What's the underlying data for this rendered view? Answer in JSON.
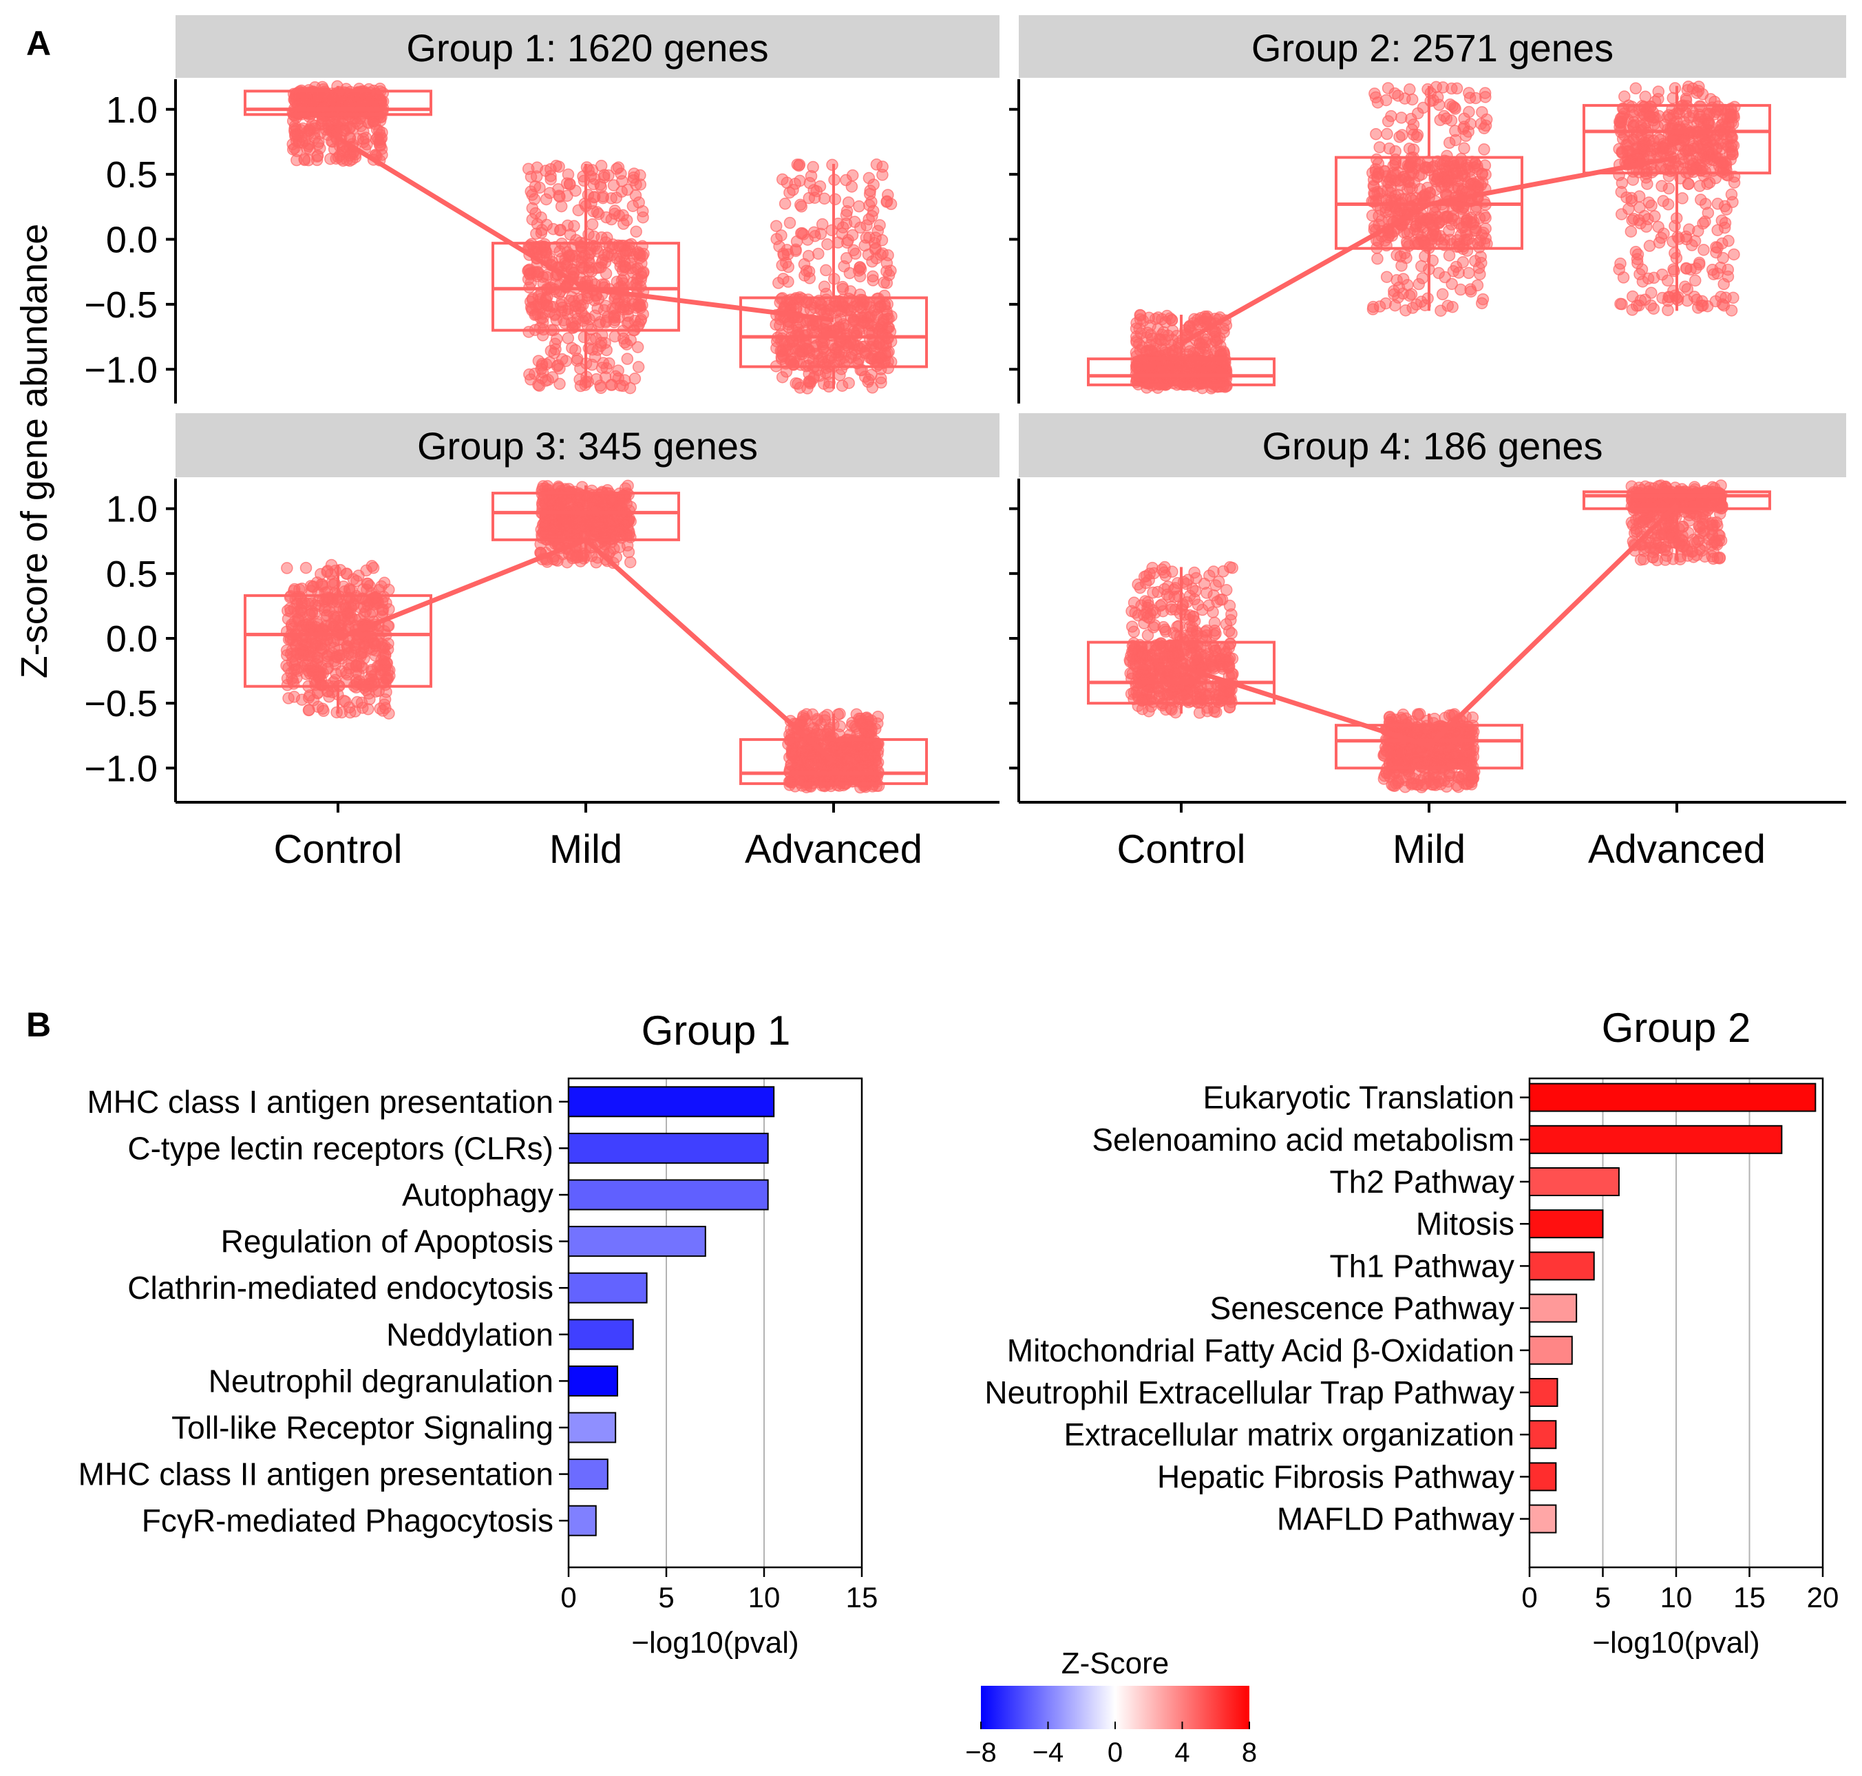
{
  "panel_labels": {
    "a": "A",
    "b": "B"
  },
  "colors": {
    "points": "#ff6464",
    "strip_bg": "#d3d3d3",
    "blue": "#0000ff",
    "white": "#ffffff",
    "red": "#ff0000"
  },
  "chart_data": [
    {
      "type": "box",
      "panel": "A",
      "ylabel": "Z-score of gene abundance",
      "yticks": [
        "1.0",
        "0.5",
        "0.0",
        "−0.5",
        "−1.0"
      ],
      "ytick_values": [
        1.0,
        0.5,
        0.0,
        -0.5,
        -1.0
      ],
      "ylim": [
        -1.25,
        1.25
      ],
      "categories": [
        "Control",
        "Mild",
        "Advanced"
      ],
      "facets": [
        {
          "title": "Group 1: 1620 genes",
          "boxes": [
            {
              "q1": 0.96,
              "median": 1.0,
              "q3": 1.14,
              "lo": 0.6,
              "hi": 1.18,
              "spread": 0.22
            },
            {
              "q1": -0.7,
              "median": -0.38,
              "q3": -0.03,
              "lo": -1.15,
              "hi": 0.58,
              "spread": 0.28
            },
            {
              "q1": -0.98,
              "median": -0.75,
              "q3": -0.45,
              "lo": -1.15,
              "hi": 0.58,
              "spread": 0.28
            }
          ],
          "trend": [
            0.78,
            -0.38,
            -0.62
          ]
        },
        {
          "title": "Group 2: 2571 genes",
          "boxes": [
            {
              "q1": -1.12,
              "median": -1.05,
              "q3": -0.92,
              "lo": -1.15,
              "hi": -0.58,
              "spread": 0.22
            },
            {
              "q1": -0.07,
              "median": 0.27,
              "q3": 0.63,
              "lo": -0.55,
              "hi": 1.18,
              "spread": 0.28
            },
            {
              "q1": 0.51,
              "median": 0.83,
              "q3": 1.03,
              "lo": -0.55,
              "hi": 1.18,
              "spread": 0.28
            }
          ],
          "trend": [
            -0.8,
            0.27,
            0.63
          ]
        },
        {
          "title": "Group 3: 345 genes",
          "boxes": [
            {
              "q1": -0.37,
              "median": 0.03,
              "q3": 0.33,
              "lo": -0.58,
              "hi": 0.57,
              "spread": 0.25
            },
            {
              "q1": 0.76,
              "median": 0.97,
              "q3": 1.12,
              "lo": 0.58,
              "hi": 1.18,
              "spread": 0.22
            },
            {
              "q1": -1.12,
              "median": -1.04,
              "q3": -0.78,
              "lo": -1.15,
              "hi": -0.58,
              "spread": 0.22
            }
          ],
          "trend": [
            0.0,
            0.76,
            -0.95
          ]
        },
        {
          "title": "Group 4: 186 genes",
          "boxes": [
            {
              "q1": -0.5,
              "median": -0.34,
              "q3": -0.03,
              "lo": -0.58,
              "hi": 0.55,
              "spread": 0.25
            },
            {
              "q1": -1.0,
              "median": -0.79,
              "q3": -0.67,
              "lo": -1.15,
              "hi": -0.58,
              "spread": 0.22
            },
            {
              "q1": 1.0,
              "median": 1.1,
              "q3": 1.13,
              "lo": 0.6,
              "hi": 1.18,
              "spread": 0.22
            }
          ],
          "trend": [
            -0.22,
            -0.83,
            1.03
          ]
        }
      ]
    },
    {
      "type": "bar",
      "orientation": "horizontal",
      "panel": "B",
      "title": "Group 1",
      "xlabel": "−log10(pval)",
      "xlim": [
        0,
        15
      ],
      "xticks": [
        0,
        5,
        10,
        15
      ],
      "categories": [
        "MHC class I antigen presentation",
        "C-type lectin receptors (CLRs)",
        "Autophagy",
        "Regulation of Apoptosis",
        "Clathrin-mediated endocytosis",
        "Neddylation",
        "Neutrophil degranulation",
        "Toll-like Receptor Signaling",
        "MHC class II antigen presentation",
        "FcγR-mediated Phagocytosis"
      ],
      "values": [
        10.5,
        10.2,
        10.2,
        7.0,
        4.0,
        3.3,
        2.5,
        2.4,
        2.0,
        1.4
      ],
      "zscores": [
        -7.5,
        -6.0,
        -5.0,
        -4.4,
        -4.9,
        -6.0,
        -7.8,
        -3.5,
        -4.6,
        -4.0
      ]
    },
    {
      "type": "bar",
      "orientation": "horizontal",
      "panel": "B",
      "title": "Group 2",
      "xlabel": "−log10(pval)",
      "xlim": [
        0,
        20
      ],
      "xticks": [
        0,
        5,
        10,
        15,
        20
      ],
      "categories": [
        "Eukaryotic Translation",
        "Selenoamino acid metabolism",
        "Th2 Pathway",
        "Mitosis",
        "Th1 Pathway",
        "Senescence Pathway",
        "Mitochondrial Fatty Acid β-Oxidation",
        "Neutrophil Extracellular Trap Pathway",
        "Extracellular matrix organization",
        "Hepatic Fibrosis Pathway",
        "MAFLD Pathway"
      ],
      "values": [
        19.5,
        17.2,
        6.1,
        5.0,
        4.4,
        3.2,
        2.9,
        1.9,
        1.8,
        1.8,
        1.8
      ],
      "zscores": [
        7.8,
        7.5,
        5.5,
        7.5,
        6.3,
        3.2,
        3.8,
        6.3,
        6.3,
        6.6,
        2.8
      ]
    },
    {
      "type": "colorbar",
      "title": "Z-Score",
      "range": [
        -8,
        8
      ],
      "ticks": [
        "−8",
        "−4",
        "0",
        "4",
        "8"
      ],
      "tick_values": [
        -8,
        -4,
        0,
        4,
        8
      ]
    }
  ]
}
